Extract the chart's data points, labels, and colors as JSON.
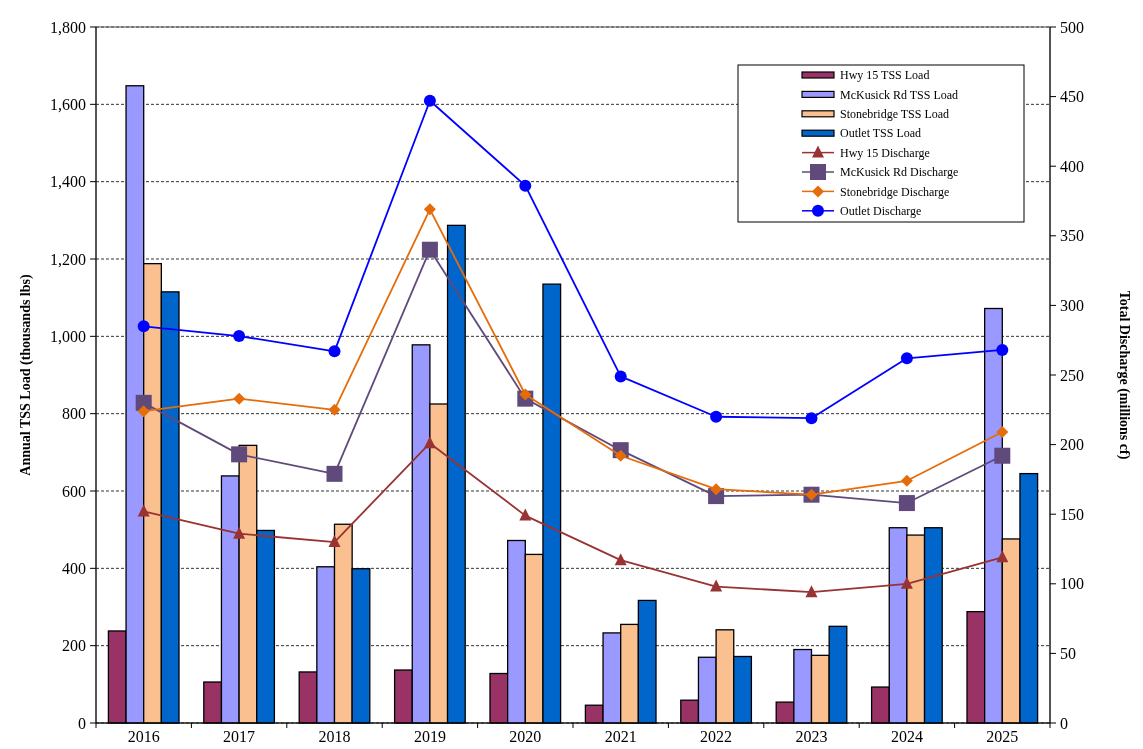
{
  "chart_data": {
    "type": "bar",
    "ylabel": "Annual TSS Load (thousands lbs)",
    "y2label": "Total Discharge (millions cf)",
    "categories": [
      "2016",
      "2017",
      "2018",
      "2019",
      "2020",
      "2021",
      "2022",
      "2023",
      "2024",
      "2025"
    ],
    "ylim": [
      0,
      1800
    ],
    "yticks": [
      0,
      200,
      400,
      600,
      800,
      {
        "value": 1000,
        "label": "1,000"
      },
      {
        "value": 1200,
        "label": "1,200"
      },
      {
        "value": 1400,
        "label": "1,400"
      },
      {
        "value": 1600,
        "label": "1,600"
      },
      {
        "value": 1800,
        "label": "1,800"
      }
    ],
    "y2lim": [
      0,
      500
    ],
    "y2ticks": [
      0,
      50,
      100,
      150,
      200,
      250,
      300,
      350,
      400,
      450,
      500
    ],
    "grid": "y",
    "legend": "top right",
    "series": [
      {
        "name": "Hwy 15 TSS Load",
        "color": "#993366",
        "values": [
          238,
          106,
          132,
          137,
          128,
          46,
          59,
          54,
          93,
          288
        ]
      },
      {
        "name": "McKusick Rd TSS Load",
        "color": "#9999ff",
        "values": [
          1648,
          639,
          404,
          978,
          472,
          233,
          170,
          190,
          505,
          1072
        ]
      },
      {
        "name": "Stonebridge TSS Load",
        "color": "#fac090",
        "values": [
          1188,
          718,
          514,
          825,
          436,
          255,
          241,
          175,
          486,
          476
        ]
      },
      {
        "name": "Outlet TSS Load",
        "color": "#0066cc",
        "values": [
          1115,
          498,
          399,
          1287,
          1135,
          317,
          172,
          250,
          505,
          645
        ]
      },
      {
        "name": "Hwy 15 Discharge",
        "type": "line",
        "axis": "y2",
        "marker": "triangle",
        "color": "#993333",
        "values": [
          152,
          136,
          130,
          201,
          149,
          117,
          98,
          94,
          100,
          119
        ]
      },
      {
        "name": "McKusick Rd Discharge",
        "type": "line",
        "axis": "y2",
        "marker": "square",
        "color": "#604a7b",
        "values": [
          230,
          193,
          179,
          340,
          233,
          196,
          163,
          164,
          158,
          192
        ]
      },
      {
        "name": "Stonebridge Discharge",
        "type": "line",
        "axis": "y2",
        "marker": "diamond",
        "color": "#e46c0a",
        "values": [
          224,
          233,
          225,
          369,
          236,
          192,
          168,
          164,
          174,
          209
        ]
      },
      {
        "name": "Outlet Discharge",
        "type": "line",
        "axis": "y2",
        "marker": "circle",
        "color": "#0000ff",
        "values": [
          285,
          278,
          267,
          447,
          386,
          249,
          220,
          219,
          262,
          268
        ]
      }
    ]
  }
}
